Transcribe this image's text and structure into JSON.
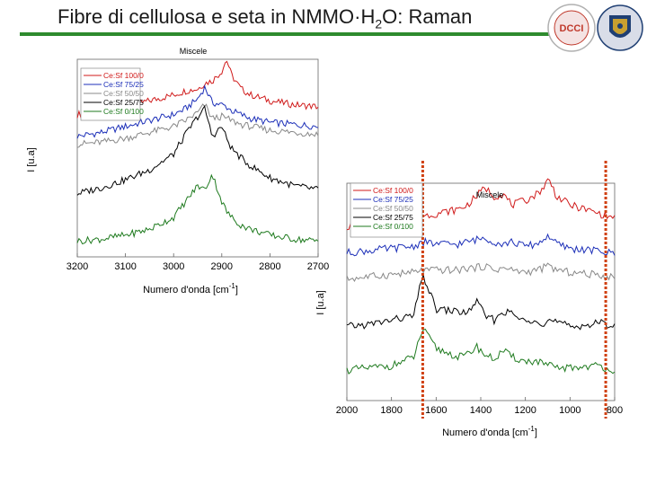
{
  "slide": {
    "title_prefix": "Fibre di cellulosa e seta in NMMO·H",
    "title_sub": "2",
    "title_suffix": "O: Raman",
    "logos": [
      {
        "name": "dcci-logo",
        "text": "DCCI",
        "color": "#c0392b"
      },
      {
        "name": "university-seal",
        "color": "#1f3f73"
      }
    ]
  },
  "colors": {
    "series": [
      "#d01a1a",
      "#1c2fb8",
      "#888888",
      "#000000",
      "#1e7a1e"
    ],
    "rule": "#2e8b2e",
    "marker": "#d04010"
  },
  "chart_data": [
    {
      "type": "line",
      "title": "Miscele",
      "xlabel": "Numero d'onda [cm",
      "xlabel_sup": "-1",
      "xlabel_end": "]",
      "ylabel": "I [u.a]",
      "xlim": [
        3200,
        2700
      ],
      "xticks": [
        3200,
        3100,
        3000,
        2900,
        2800,
        2700
      ],
      "ylim": [
        0,
        10
      ],
      "legend": "top-left",
      "series": [
        {
          "name": "Ce:Sf 100/0",
          "color": "#d01a1a",
          "x": [
            3200,
            3150,
            3100,
            3050,
            3000,
            2975,
            2950,
            2935,
            2920,
            2900,
            2890,
            2880,
            2860,
            2840,
            2800,
            2750,
            2700
          ],
          "values": [
            7.2,
            7.4,
            7.6,
            7.9,
            8.2,
            8.4,
            8.5,
            8.8,
            8.9,
            9.4,
            10.0,
            9.2,
            8.5,
            8.2,
            7.9,
            7.7,
            7.6
          ]
        },
        {
          "name": "Ce:Sf 75/25",
          "color": "#1c2fb8",
          "x": [
            3200,
            3150,
            3100,
            3050,
            3000,
            2975,
            2950,
            2935,
            2920,
            2900,
            2890,
            2880,
            2860,
            2840,
            2800,
            2750,
            2700
          ],
          "values": [
            6.1,
            6.3,
            6.6,
            6.9,
            7.2,
            7.5,
            8.0,
            8.6,
            7.8,
            7.7,
            7.6,
            7.4,
            7.2,
            7.0,
            6.8,
            6.7,
            6.6
          ]
        },
        {
          "name": "Ce:Sf 50/50",
          "color": "#888888",
          "x": [
            3200,
            3150,
            3100,
            3050,
            3000,
            2975,
            2950,
            2935,
            2920,
            2900,
            2890,
            2880,
            2860,
            2840,
            2800,
            2750,
            2700
          ],
          "values": [
            5.7,
            5.8,
            6.0,
            6.3,
            6.6,
            6.9,
            7.3,
            7.7,
            7.0,
            7.1,
            7.0,
            6.9,
            6.7,
            6.6,
            6.4,
            6.3,
            6.2
          ]
        },
        {
          "name": "Ce:Sf 25/75",
          "color": "#000000",
          "x": [
            3200,
            3150,
            3100,
            3050,
            3000,
            2975,
            2950,
            2935,
            2920,
            2900,
            2890,
            2880,
            2860,
            2840,
            2800,
            2750,
            2700
          ],
          "values": [
            3.2,
            3.5,
            3.9,
            4.4,
            5.2,
            6.2,
            7.1,
            7.5,
            6.1,
            6.6,
            6.0,
            5.5,
            5.0,
            4.6,
            4.0,
            3.6,
            3.4
          ]
        },
        {
          "name": "Ce:Sf 0/100",
          "color": "#1e7a1e",
          "x": [
            3200,
            3150,
            3100,
            3050,
            3000,
            2975,
            2950,
            2935,
            2920,
            2900,
            2890,
            2880,
            2860,
            2840,
            2800,
            2750,
            2700
          ],
          "values": [
            0.8,
            0.9,
            1.1,
            1.4,
            2.0,
            2.8,
            3.6,
            3.4,
            4.2,
            2.8,
            2.3,
            2.0,
            1.6,
            1.4,
            1.1,
            0.9,
            0.8
          ]
        }
      ]
    },
    {
      "type": "line",
      "title": "Miscele",
      "xlabel": "Numero d'onda [cm",
      "xlabel_sup": "-1",
      "xlabel_end": "]",
      "ylabel": "I [u.a]",
      "xlim": [
        2000,
        800
      ],
      "xticks": [
        2000,
        1800,
        1600,
        1400,
        1200,
        1000,
        800
      ],
      "ylim": [
        0,
        10
      ],
      "legend": "top-left",
      "markers": [
        1660,
        840
      ],
      "series": [
        {
          "name": "Ce:Sf 100/0",
          "color": "#d01a1a",
          "x": [
            2000,
            1900,
            1800,
            1700,
            1660,
            1600,
            1500,
            1460,
            1420,
            1380,
            1340,
            1300,
            1260,
            1200,
            1150,
            1120,
            1095,
            1060,
            1000,
            900,
            870,
            840,
            800
          ],
          "values": [
            8.0,
            8.1,
            8.2,
            8.4,
            8.5,
            8.6,
            8.8,
            9.0,
            9.4,
            9.8,
            9.4,
            9.5,
            9.0,
            9.2,
            9.5,
            9.8,
            10.2,
            9.4,
            9.0,
            8.7,
            8.6,
            8.5,
            8.4
          ]
        },
        {
          "name": "Ce:Sf 75/25",
          "color": "#1c2fb8",
          "x": [
            2000,
            1900,
            1800,
            1700,
            1660,
            1600,
            1500,
            1460,
            1420,
            1380,
            1340,
            1300,
            1260,
            1200,
            1150,
            1120,
            1095,
            1060,
            1000,
            900,
            870,
            840,
            800
          ],
          "values": [
            6.8,
            6.9,
            7.0,
            7.1,
            7.3,
            7.2,
            7.2,
            7.3,
            7.4,
            7.5,
            7.3,
            7.2,
            7.3,
            7.1,
            7.2,
            7.4,
            7.6,
            7.2,
            7.0,
            6.9,
            6.9,
            6.8,
            6.8
          ]
        },
        {
          "name": "Ce:Sf 50/50",
          "color": "#888888",
          "x": [
            2000,
            1900,
            1800,
            1700,
            1660,
            1600,
            1500,
            1460,
            1420,
            1380,
            1340,
            1300,
            1260,
            1200,
            1150,
            1120,
            1095,
            1060,
            1000,
            900,
            870,
            840,
            800
          ],
          "values": [
            5.6,
            5.7,
            5.8,
            5.9,
            6.0,
            6.0,
            6.0,
            6.1,
            6.1,
            6.2,
            6.0,
            6.1,
            6.0,
            5.9,
            6.0,
            6.1,
            6.2,
            6.0,
            5.9,
            5.8,
            5.8,
            5.7,
            5.7
          ]
        },
        {
          "name": "Ce:Sf 25/75",
          "color": "#000000",
          "x": [
            2000,
            1900,
            1800,
            1700,
            1660,
            1600,
            1500,
            1460,
            1420,
            1380,
            1340,
            1300,
            1260,
            1200,
            1150,
            1120,
            1095,
            1060,
            1000,
            900,
            870,
            840,
            800
          ],
          "values": [
            3.4,
            3.5,
            3.7,
            3.9,
            5.8,
            4.2,
            4.1,
            4.0,
            4.6,
            3.9,
            3.7,
            4.1,
            4.0,
            3.6,
            3.8,
            3.5,
            3.7,
            3.6,
            3.4,
            3.5,
            3.6,
            3.5,
            3.5
          ]
        },
        {
          "name": "Ce:Sf 0/100",
          "color": "#1e7a1e",
          "x": [
            2000,
            1900,
            1800,
            1700,
            1660,
            1600,
            1500,
            1460,
            1420,
            1380,
            1340,
            1300,
            1260,
            1200,
            1150,
            1120,
            1095,
            1060,
            1000,
            900,
            870,
            840,
            800
          ],
          "values": [
            1.4,
            1.5,
            1.6,
            2.0,
            3.3,
            2.4,
            2.0,
            2.1,
            2.5,
            2.1,
            1.9,
            2.3,
            2.0,
            1.8,
            1.8,
            1.7,
            1.6,
            1.5,
            1.5,
            1.6,
            1.6,
            1.5,
            1.4
          ]
        }
      ]
    }
  ]
}
